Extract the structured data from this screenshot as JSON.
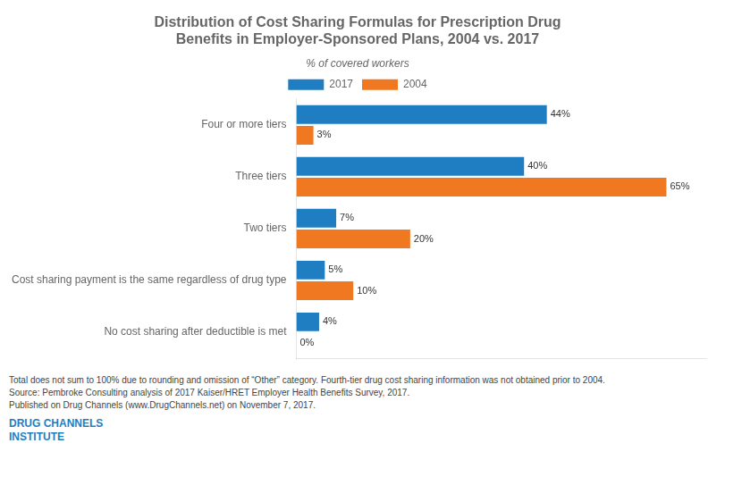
{
  "chart_data": {
    "type": "bar",
    "orientation": "horizontal",
    "title": [
      "Distribution of Cost Sharing Formulas for Prescription Drug",
      "Benefits in Employer-Sponsored Plans, 2004 vs. 2017"
    ],
    "subtitle": "% of covered workers",
    "categories": [
      "Four or more tiers",
      "Three tiers",
      "Two tiers",
      "Cost sharing payment is the same regardless of drug type",
      "No cost sharing after deductible is met"
    ],
    "series": [
      {
        "name": "2017",
        "color": "#1F7EC2",
        "values": [
          44,
          40,
          7,
          5,
          4
        ],
        "value_labels": [
          "44%",
          "40%",
          "7%",
          "5%",
          "4%"
        ]
      },
      {
        "name": "2004",
        "color": "#F07820",
        "values": [
          3,
          65,
          20,
          10,
          0
        ],
        "value_labels": [
          "3%",
          "65%",
          "20%",
          "10%",
          "0%"
        ]
      }
    ],
    "xlim": [
      0,
      72
    ],
    "grid": false,
    "legend": "top",
    "data_labels": true,
    "tick_labels": "y",
    "annotations": [
      "Total does not sum to 100% due to rounding and omission of “Other” category. Fourth-tier drug cost sharing information was not obtained prior to 2004.",
      "Source: Pembroke Consulting analysis of 2017 Kaiser/HRET Employer Health Benefits Survey, 2017.",
      "Published on Drug Channels (www.DrugChannels.net) on November 7, 2017.",
      "DRUG CHANNELS",
      "INSTITUTE"
    ]
  }
}
